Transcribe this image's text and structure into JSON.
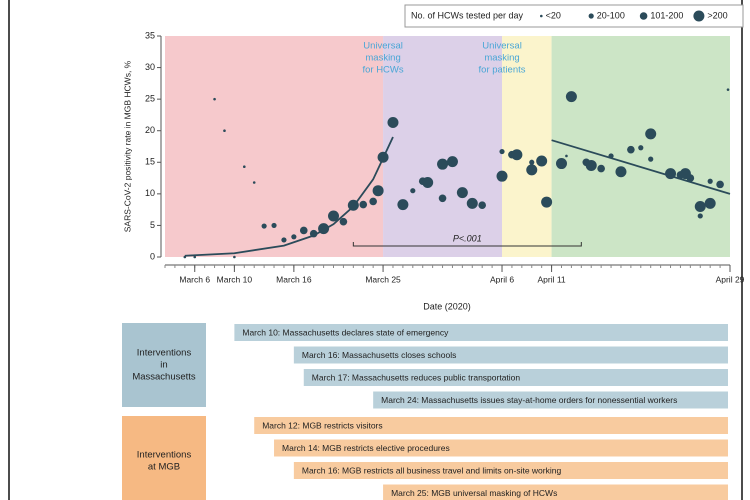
{
  "chart_data": {
    "type": "scatter",
    "y_label": "SARS-CoV-2 positivity rate in MGB HCWs, %",
    "x_label": "Date (2020)",
    "xlim": [
      3,
      60
    ],
    "ylim": [
      0,
      35
    ],
    "yticks": [
      0,
      5,
      10,
      15,
      20,
      25,
      30,
      35
    ],
    "xticks": [
      {
        "value": 6,
        "label": "March 6"
      },
      {
        "value": 10,
        "label": "March 10"
      },
      {
        "value": 16,
        "label": "March 16"
      },
      {
        "value": 25,
        "label": "March 25"
      },
      {
        "value": 37,
        "label": "April 6"
      },
      {
        "value": 42,
        "label": "April 11"
      },
      {
        "value": 60,
        "label": "April 29"
      }
    ],
    "legend_title": "No. of HCWs tested per day",
    "legend": "top-right",
    "regions": [
      {
        "start": 3,
        "end": 25,
        "color": "#f6c9cc"
      },
      {
        "start": 25,
        "end": 37,
        "color": "#dcd0e8",
        "label": [
          "Universal",
          "masking",
          "for HCWs"
        ],
        "label_color": "#4aa6d6"
      },
      {
        "start": 37,
        "end": 42,
        "color": "#fbf4cc",
        "label": [
          "Universal",
          "masking",
          "for patients"
        ],
        "label_color": "#4aa6d6"
      },
      {
        "start": 42,
        "end": 60,
        "color": "#cce5c6"
      }
    ],
    "series": [
      {
        "name": "<20",
        "color": "#2b4b5a",
        "radius": 1.3,
        "x": [
          5,
          6,
          8,
          9,
          10,
          11,
          12,
          43.5,
          59.8
        ],
        "values": [
          0,
          0,
          25,
          20,
          0,
          14.3,
          11.8,
          16,
          26.5
        ]
      },
      {
        "name": "20-100",
        "color": "#2b4b5a",
        "radius": 2.6,
        "x": [
          13,
          14,
          15,
          16,
          28,
          37,
          40,
          48,
          51,
          52,
          57,
          58
        ],
        "values": [
          4.9,
          5,
          2.7,
          3.2,
          10.5,
          16.7,
          15,
          16,
          17.3,
          15.5,
          6.5,
          12
        ]
      },
      {
        "name": "101-200",
        "color": "#2b4b5a",
        "radius": 3.8,
        "x": [
          17,
          18,
          21,
          23,
          24,
          29,
          31,
          35,
          38,
          47,
          50,
          55,
          56,
          59,
          45.5
        ],
        "values": [
          4.2,
          3.7,
          5.6,
          8.3,
          8.8,
          12,
          9.3,
          8.2,
          16.2,
          14,
          17,
          13,
          12.5,
          11.5,
          15
        ]
      },
      {
        "name": ">200",
        "color": "#2b4b5a",
        "radius": 5.5,
        "x": [
          19,
          20,
          22,
          24.5,
          25,
          26,
          27,
          29.5,
          31,
          32,
          33,
          34,
          37,
          38.5,
          40,
          41,
          41.5,
          43,
          44,
          46,
          49,
          52,
          54,
          55.5,
          57,
          58
        ],
        "values": [
          4.5,
          6.5,
          8.2,
          10.5,
          15.8,
          21.3,
          8.3,
          11.8,
          14.7,
          15.1,
          10.2,
          8.5,
          12.8,
          16.2,
          13.8,
          15.2,
          8.7,
          14.8,
          25.4,
          14.5,
          13.5,
          19.5,
          13.2,
          13.2,
          8,
          8.5
        ]
      }
    ],
    "trend_lines": [
      {
        "color": "#2b4b5a",
        "x": [
          5,
          10,
          15,
          18,
          20,
          22,
          24,
          26
        ],
        "values": [
          0.2,
          0.6,
          1.8,
          3.4,
          5.2,
          8,
          12.3,
          19
        ]
      },
      {
        "color": "#2b4b5a",
        "x": [
          42,
          60
        ],
        "values": [
          18.5,
          10
        ]
      }
    ],
    "annotation": {
      "text": "P<.001",
      "x": [
        22,
        45
      ]
    },
    "interventions": [
      {
        "name": [
          "Interventions",
          "in",
          "Massachusetts"
        ],
        "box_color": "#a9c4d0",
        "bar_color": "#b9d0da",
        "items": [
          {
            "date": 10,
            "label": "March 10: Massachusetts declares state of emergency"
          },
          {
            "date": 16,
            "label": "March 16: Massachusetts closes schools"
          },
          {
            "date": 17,
            "label": "March 17: Massachusetts reduces public transportation"
          },
          {
            "date": 24,
            "label": "March 24: Massachusetts issues stay-at-home orders for nonessential workers"
          }
        ]
      },
      {
        "name": [
          "Interventions",
          "at MGB"
        ],
        "box_color": "#f6b983",
        "bar_color": "#f8cb9f",
        "items": [
          {
            "date": 12,
            "label": "March 12: MGB restricts visitors"
          },
          {
            "date": 14,
            "label": "March 14: MGB restricts elective procedures"
          },
          {
            "date": 16,
            "label": "March 16: MGB restricts all business travel and limits on-site working"
          },
          {
            "date": 25,
            "label": "March 25: MGB universal masking of HCWs"
          }
        ]
      }
    ]
  }
}
